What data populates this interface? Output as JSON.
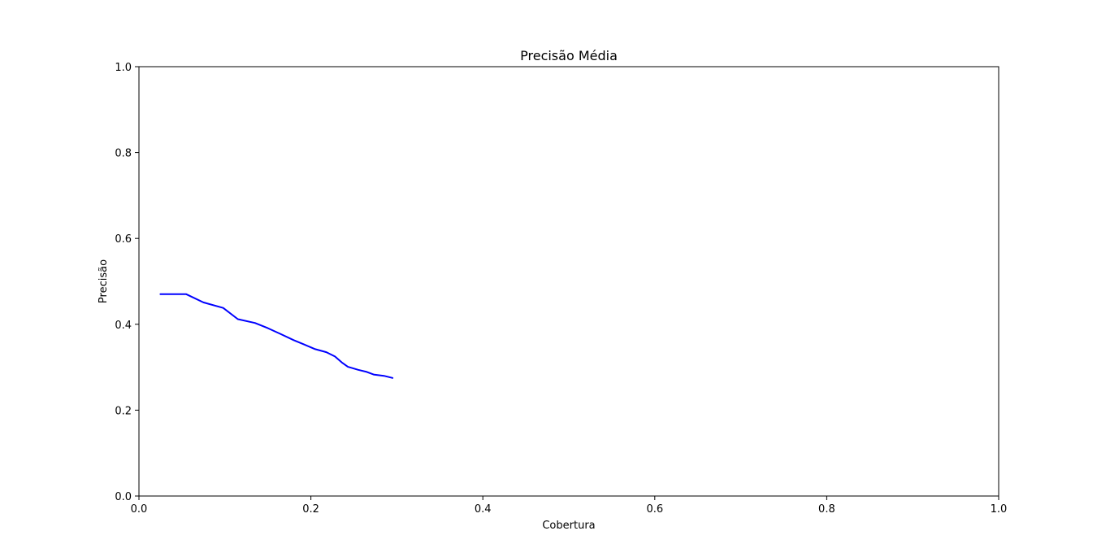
{
  "chart_data": {
    "type": "line",
    "title": "Precisão Média",
    "xlabel": "Cobertura",
    "ylabel": "Precisão",
    "xlim": [
      0.0,
      1.0
    ],
    "ylim": [
      0.0,
      1.0
    ],
    "xticks": [
      "0.0",
      "0.2",
      "0.4",
      "0.6",
      "0.8",
      "1.0"
    ],
    "yticks": [
      "0.0",
      "0.2",
      "0.4",
      "0.6",
      "0.8",
      "1.0"
    ],
    "grid": false,
    "series": [
      {
        "color": "#0000ff",
        "x": [
          0.025,
          0.055,
          0.075,
          0.098,
          0.115,
          0.135,
          0.15,
          0.165,
          0.18,
          0.192,
          0.205,
          0.218,
          0.228,
          0.236,
          0.243,
          0.255,
          0.265,
          0.273,
          0.285,
          0.295
        ],
        "y": [
          0.47,
          0.47,
          0.451,
          0.438,
          0.412,
          0.403,
          0.391,
          0.377,
          0.363,
          0.353,
          0.342,
          0.335,
          0.325,
          0.311,
          0.301,
          0.294,
          0.289,
          0.283,
          0.28,
          0.275
        ]
      }
    ]
  }
}
